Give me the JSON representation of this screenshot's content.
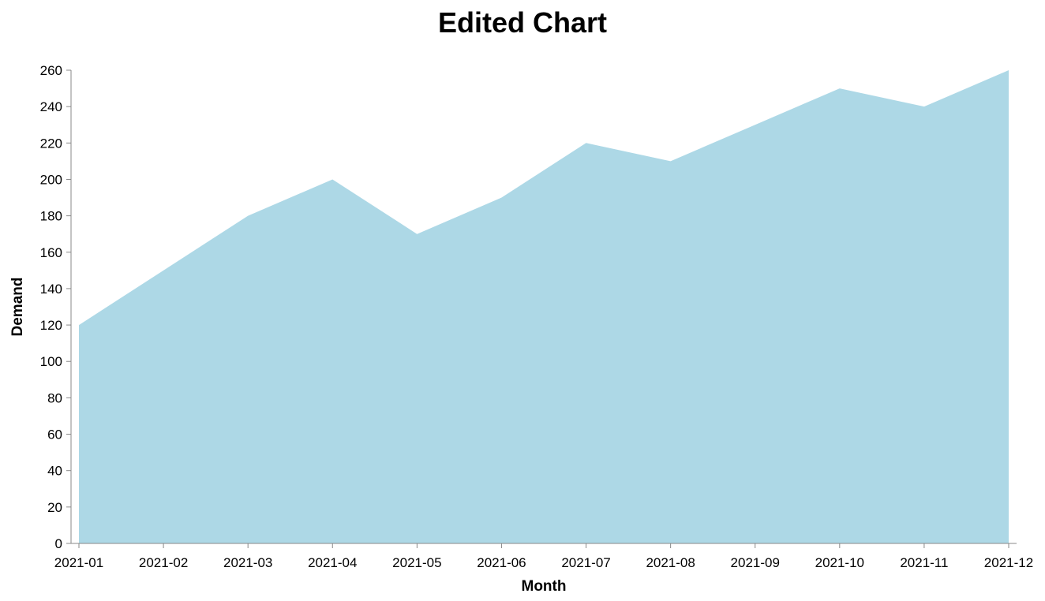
{
  "chart_data": {
    "type": "area",
    "title": "Edited Chart",
    "xlabel": "Month",
    "ylabel": "Demand",
    "x": [
      "2021-01",
      "2021-02",
      "2021-03",
      "2021-04",
      "2021-05",
      "2021-06",
      "2021-07",
      "2021-08",
      "2021-09",
      "2021-10",
      "2021-11",
      "2021-12"
    ],
    "values": [
      120,
      150,
      180,
      200,
      170,
      190,
      220,
      210,
      230,
      250,
      240,
      260
    ],
    "ylim": [
      0,
      260
    ],
    "yticks": [
      0,
      20,
      40,
      60,
      80,
      100,
      120,
      140,
      160,
      180,
      200,
      220,
      240,
      260
    ],
    "grid": false,
    "legend": "none",
    "colors": {
      "area": "#add8e6",
      "axis": "#888888",
      "text": "#000000"
    }
  }
}
